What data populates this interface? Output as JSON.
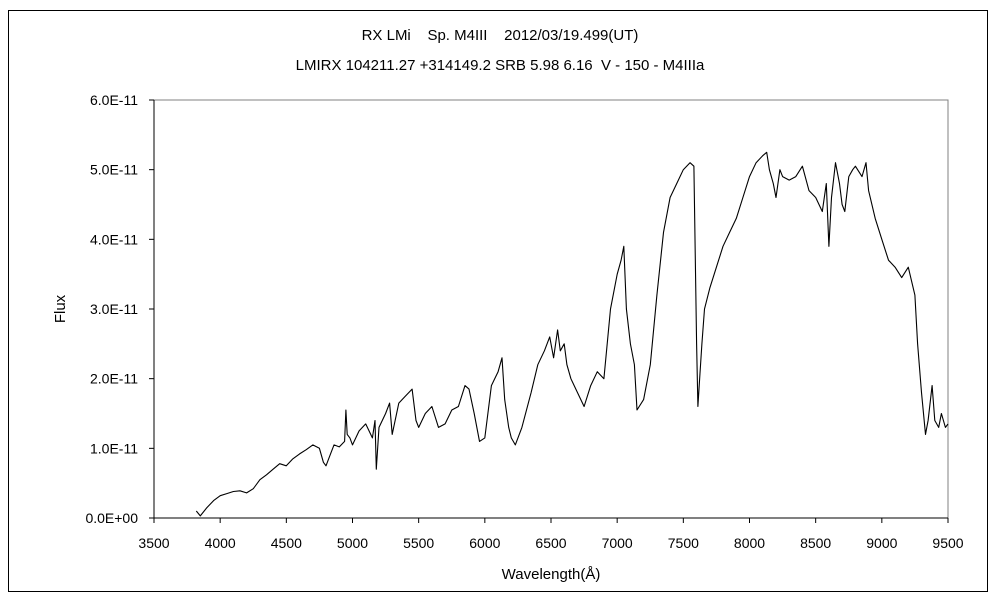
{
  "chart_data": {
    "type": "line",
    "title": "RX LMi    Sp. M4III    2012/03/19.499(UT)",
    "subtitle": "LMIRX 104211.27 +314149.2 SRB 5.98 6.16  V - 150 - M4IIIa",
    "xlabel": "Wavelength(Å)",
    "ylabel": "Flux",
    "xlim": [
      3500,
      9500
    ],
    "ylim": [
      0,
      6e-11
    ],
    "xticks": [
      "3500",
      "4000",
      "4500",
      "5000",
      "5500",
      "6000",
      "6500",
      "7000",
      "7500",
      "8000",
      "8500",
      "9000",
      "9500"
    ],
    "yticks": [
      "0.0E+00",
      "1.0E-11",
      "2.0E-11",
      "3.0E-11",
      "4.0E-11",
      "5.0E-11",
      "6.0E-11"
    ],
    "grid": false,
    "line_color": "#000000",
    "series": [
      {
        "x": [
          3820,
          3850,
          3900,
          3950,
          4000,
          4050,
          4100,
          4150,
          4200,
          4250,
          4300,
          4350,
          4400,
          4450,
          4500,
          4550,
          4600,
          4650,
          4700,
          4750,
          4780,
          4800,
          4830,
          4860,
          4900,
          4940,
          4950,
          4960,
          4980,
          5000,
          5050,
          5100,
          5150,
          5170,
          5180,
          5200,
          5250,
          5280,
          5300,
          5350,
          5400,
          5450,
          5480,
          5500,
          5550,
          5600,
          5650,
          5700,
          5750,
          5800,
          5850,
          5880,
          5920,
          5960,
          6000,
          6050,
          6100,
          6130,
          6150,
          6180,
          6200,
          6230,
          6280,
          6350,
          6400,
          6450,
          6490,
          6520,
          6550,
          6570,
          6600,
          6620,
          6650,
          6700,
          6750,
          6800,
          6850,
          6900,
          6950,
          7000,
          7030,
          7050,
          7070,
          7100,
          7130,
          7150,
          7200,
          7250,
          7300,
          7350,
          7400,
          7450,
          7500,
          7550,
          7580,
          7600,
          7610,
          7620,
          7640,
          7660,
          7700,
          7750,
          7800,
          7850,
          7900,
          7950,
          8000,
          8050,
          8100,
          8130,
          8150,
          8180,
          8200,
          8230,
          8250,
          8300,
          8350,
          8400,
          8450,
          8500,
          8550,
          8580,
          8600,
          8620,
          8650,
          8680,
          8700,
          8720,
          8750,
          8780,
          8800,
          8850,
          8880,
          8900,
          8950,
          9000,
          9050,
          9100,
          9150,
          9200,
          9250,
          9270,
          9300,
          9330,
          9350,
          9380,
          9400,
          9430,
          9450,
          9480,
          9500
        ],
        "y": [
          1e-12,
          3e-13,
          1.5e-12,
          2.5e-12,
          3.2e-12,
          3.5e-12,
          3.8e-12,
          3.9e-12,
          3.6e-12,
          4.2e-12,
          5.5e-12,
          6.2e-12,
          7e-12,
          7.8e-12,
          7.5e-12,
          8.5e-12,
          9.2e-12,
          9.8e-12,
          1.05e-11,
          1e-11,
          8e-12,
          7.5e-12,
          9e-12,
          1.05e-11,
          1.02e-11,
          1.1e-11,
          1.55e-11,
          1.2e-11,
          1.15e-11,
          1.05e-11,
          1.25e-11,
          1.35e-11,
          1.15e-11,
          1.4e-11,
          7e-12,
          1.3e-11,
          1.5e-11,
          1.65e-11,
          1.2e-11,
          1.65e-11,
          1.75e-11,
          1.85e-11,
          1.4e-11,
          1.3e-11,
          1.5e-11,
          1.6e-11,
          1.3e-11,
          1.35e-11,
          1.55e-11,
          1.6e-11,
          1.9e-11,
          1.85e-11,
          1.5e-11,
          1.1e-11,
          1.15e-11,
          1.9e-11,
          2.1e-11,
          2.3e-11,
          1.7e-11,
          1.3e-11,
          1.15e-11,
          1.05e-11,
          1.3e-11,
          1.8e-11,
          2.2e-11,
          2.4e-11,
          2.6e-11,
          2.3e-11,
          2.7e-11,
          2.4e-11,
          2.5e-11,
          2.2e-11,
          2e-11,
          1.8e-11,
          1.6e-11,
          1.9e-11,
          2.1e-11,
          2e-11,
          3e-11,
          3.5e-11,
          3.7e-11,
          3.9e-11,
          3e-11,
          2.5e-11,
          2.2e-11,
          1.55e-11,
          1.7e-11,
          2.2e-11,
          3.2e-11,
          4.1e-11,
          4.6e-11,
          4.8e-11,
          5e-11,
          5.1e-11,
          5.05e-11,
          2.5e-11,
          1.6e-11,
          1.9e-11,
          2.5e-11,
          3e-11,
          3.3e-11,
          3.6e-11,
          3.9e-11,
          4.1e-11,
          4.3e-11,
          4.6e-11,
          4.9e-11,
          5.1e-11,
          5.2e-11,
          5.25e-11,
          5e-11,
          4.8e-11,
          4.6e-11,
          5e-11,
          4.9e-11,
          4.85e-11,
          4.9e-11,
          5.05e-11,
          4.7e-11,
          4.6e-11,
          4.4e-11,
          4.8e-11,
          3.9e-11,
          4.6e-11,
          5.1e-11,
          4.8e-11,
          4.5e-11,
          4.4e-11,
          4.9e-11,
          5e-11,
          5.05e-11,
          4.9e-11,
          5.1e-11,
          4.7e-11,
          4.3e-11,
          4e-11,
          3.7e-11,
          3.6e-11,
          3.45e-11,
          3.6e-11,
          3.2e-11,
          2.5e-11,
          1.8e-11,
          1.2e-11,
          1.4e-11,
          1.9e-11,
          1.4e-11,
          1.3e-11,
          1.5e-11,
          1.3e-11,
          1.35e-11
        ]
      }
    ]
  }
}
